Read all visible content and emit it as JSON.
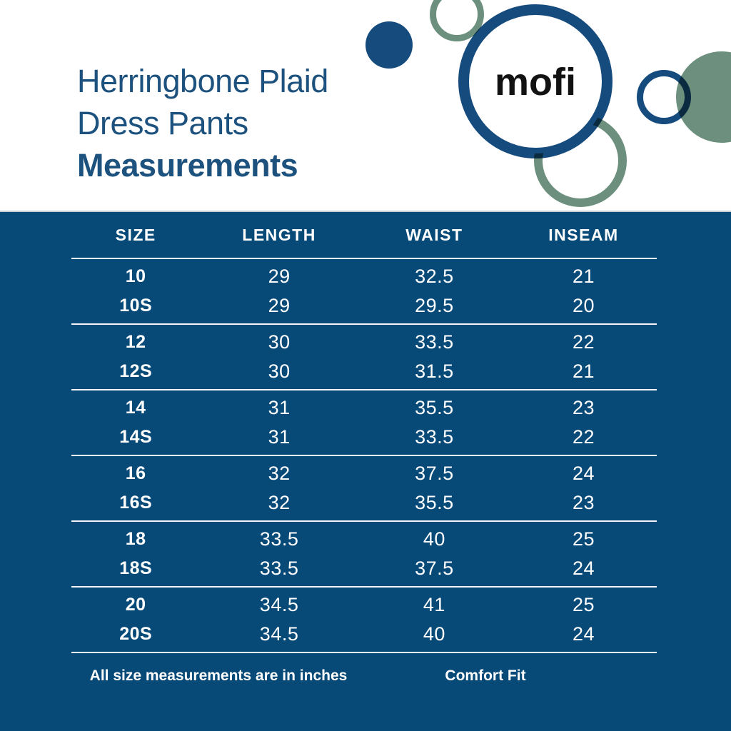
{
  "brand": {
    "logo_text": "mofi"
  },
  "header": {
    "title_line1": "Herringbone Plaid",
    "title_line2": "Dress Pants",
    "title_line3": "Measurements"
  },
  "table": {
    "columns": [
      "SIZE",
      "LENGTH",
      "WAIST",
      "INSEAM"
    ],
    "groups": [
      [
        [
          "10",
          "29",
          "32.5",
          "21"
        ],
        [
          "10S",
          "29",
          "29.5",
          "20"
        ]
      ],
      [
        [
          "12",
          "30",
          "33.5",
          "22"
        ],
        [
          "12S",
          "30",
          "31.5",
          "21"
        ]
      ],
      [
        [
          "14",
          "31",
          "35.5",
          "23"
        ],
        [
          "14S",
          "31",
          "33.5",
          "22"
        ]
      ],
      [
        [
          "16",
          "32",
          "37.5",
          "24"
        ],
        [
          "16S",
          "32",
          "35.5",
          "23"
        ]
      ],
      [
        [
          "18",
          "33.5",
          "40",
          "25"
        ],
        [
          "18S",
          "33.5",
          "37.5",
          "24"
        ]
      ],
      [
        [
          "20",
          "34.5",
          "41",
          "25"
        ],
        [
          "20S",
          "34.5",
          "40",
          "24"
        ]
      ]
    ]
  },
  "footer": {
    "note": "All size measurements are in inches",
    "fit_label": "Comfort Fit"
  },
  "colors": {
    "panel_blue": "#074a78",
    "title_blue": "#1d527f",
    "circle_blue": "#164b7e",
    "sage_green": "#6c8f7e",
    "logo_black": "#121212"
  },
  "chart_data": {
    "type": "table",
    "title": "Herringbone Plaid Dress Pants Measurements",
    "columns": [
      "SIZE",
      "LENGTH",
      "WAIST",
      "INSEAM"
    ],
    "rows": [
      [
        "10",
        29,
        32.5,
        21
      ],
      [
        "10S",
        29,
        29.5,
        20
      ],
      [
        "12",
        30,
        33.5,
        22
      ],
      [
        "12S",
        30,
        31.5,
        21
      ],
      [
        "14",
        31,
        35.5,
        23
      ],
      [
        "14S",
        31,
        33.5,
        22
      ],
      [
        "16",
        32,
        37.5,
        24
      ],
      [
        "16S",
        32,
        35.5,
        23
      ],
      [
        "18",
        33.5,
        40,
        25
      ],
      [
        "18S",
        33.5,
        37.5,
        24
      ],
      [
        "20",
        34.5,
        41,
        25
      ],
      [
        "20S",
        34.5,
        40,
        24
      ]
    ],
    "units": "inches",
    "notes": [
      "All size measurements are in inches",
      "Comfort Fit"
    ]
  }
}
